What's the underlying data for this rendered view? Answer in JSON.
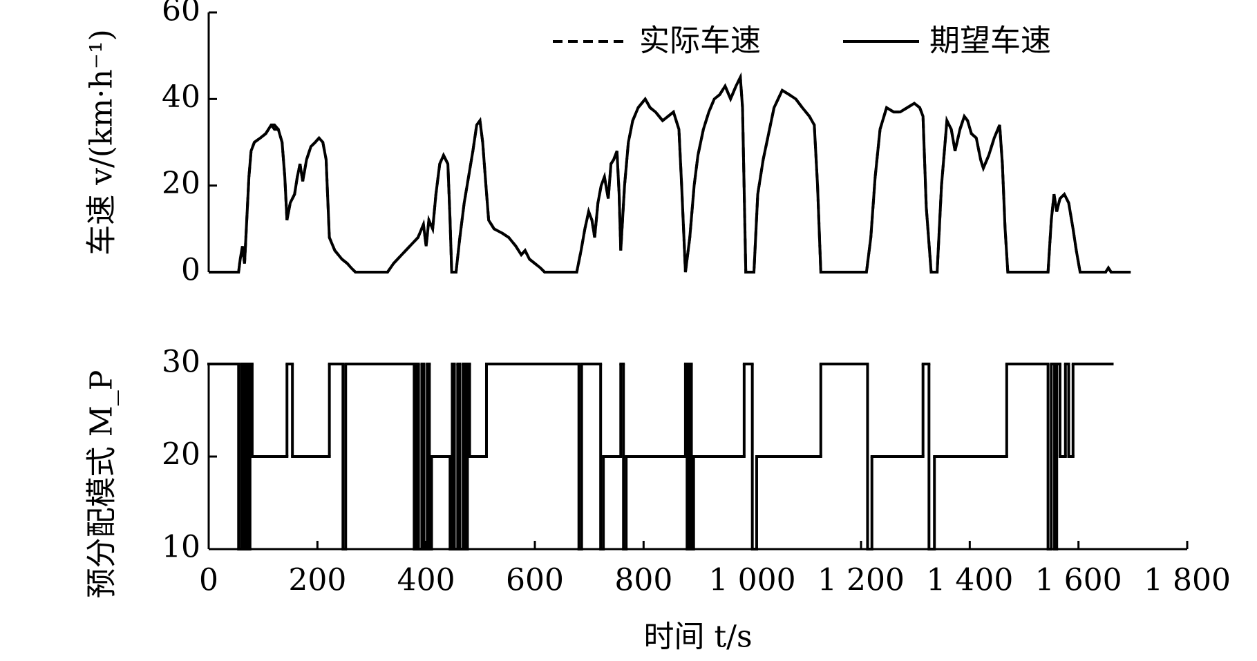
{
  "chart_data": [
    {
      "type": "line",
      "ylabel": "车速 v/(km·h⁻¹)",
      "xlim": [
        0,
        1800
      ],
      "ylim": [
        0,
        60
      ],
      "yticks": [
        0,
        20,
        40,
        60
      ],
      "legend": "upper right",
      "x": [
        0,
        55,
        58,
        62,
        66,
        70,
        74,
        78,
        84,
        95,
        105,
        115,
        121,
        128,
        135,
        140,
        144,
        150,
        158,
        163,
        168,
        173,
        180,
        188,
        196,
        203,
        210,
        216,
        222,
        232,
        245,
        255,
        262,
        270,
        329,
        340,
        355,
        370,
        385,
        395,
        400,
        405,
        412,
        418,
        425,
        432,
        440,
        444,
        447,
        455,
        462,
        470,
        478,
        486,
        493,
        499,
        504,
        510,
        515,
        525,
        540,
        552,
        565,
        575,
        582,
        590,
        600,
        610,
        618,
        677,
        685,
        692,
        699,
        705,
        710,
        716,
        722,
        728,
        735,
        740,
        745,
        751,
        755,
        758,
        765,
        772,
        780,
        790,
        803,
        812,
        822,
        835,
        845,
        855,
        865,
        870,
        877,
        885,
        893,
        900,
        910,
        920,
        930,
        940,
        950,
        960,
        970,
        978,
        982,
        988,
        1003,
        1010,
        1020,
        1030,
        1040,
        1055,
        1068,
        1080,
        1092,
        1105,
        1114,
        1120,
        1126,
        1210,
        1218,
        1226,
        1235,
        1247,
        1260,
        1272,
        1285,
        1298,
        1308,
        1314,
        1320,
        1329,
        1340,
        1348,
        1358,
        1366,
        1373,
        1382,
        1390,
        1396,
        1403,
        1412,
        1420,
        1425,
        1435,
        1445,
        1455,
        1460,
        1465,
        1470,
        1544,
        1550,
        1555,
        1560,
        1566,
        1574,
        1582,
        1590,
        1596,
        1603,
        1650,
        1655,
        1660,
        1696
      ],
      "series": [
        {
          "name": "实际车速",
          "color": "#000000",
          "dash": true,
          "values": [
            0,
            0,
            3,
            5,
            2,
            12,
            22,
            28,
            30,
            31,
            32,
            34,
            33,
            33,
            30,
            22,
            12,
            16,
            18,
            22,
            25,
            21,
            26,
            29,
            30,
            31,
            30,
            26,
            8,
            5,
            3,
            2,
            1,
            0,
            0,
            2,
            4,
            6,
            8,
            11,
            6,
            12,
            10,
            18,
            25,
            27,
            25,
            12,
            0,
            0,
            8,
            16,
            22,
            28,
            34,
            35,
            30,
            20,
            12,
            10,
            9,
            8,
            6,
            4,
            5,
            3,
            2,
            1,
            0,
            0,
            5,
            10,
            14,
            12,
            8,
            16,
            20,
            22,
            17,
            25,
            26,
            28,
            18,
            5,
            20,
            30,
            35,
            38,
            40,
            38,
            37,
            35,
            36,
            37,
            33,
            20,
            0,
            8,
            20,
            27,
            33,
            37,
            40,
            41,
            43,
            40,
            43,
            45,
            38,
            0,
            0,
            18,
            26,
            32,
            38,
            42,
            41,
            40,
            38,
            36,
            34,
            20,
            0,
            0,
            8,
            22,
            33,
            38,
            37,
            37,
            38,
            39,
            38,
            36,
            15,
            0,
            0,
            20,
            35,
            33,
            28,
            33,
            36,
            35,
            32,
            31,
            26,
            24,
            27,
            31,
            34,
            25,
            10,
            0,
            0,
            12,
            18,
            14,
            17,
            18,
            16,
            10,
            5,
            0,
            0,
            1,
            0,
            0
          ]
        },
        {
          "name": "期望车速",
          "color": "#000000",
          "dash": false,
          "values": [
            0,
            0,
            3,
            6,
            2,
            12,
            22,
            28,
            30,
            31,
            32,
            34,
            34,
            33,
            30,
            22,
            12,
            16,
            18,
            22,
            25,
            21,
            26,
            29,
            30,
            31,
            30,
            26,
            8,
            5,
            3,
            2,
            1,
            0,
            0,
            2,
            4,
            6,
            8,
            11,
            6,
            12,
            10,
            18,
            25,
            27,
            25,
            12,
            0,
            0,
            8,
            16,
            22,
            28,
            34,
            35,
            30,
            20,
            12,
            10,
            9,
            8,
            6,
            4,
            5,
            3,
            2,
            1,
            0,
            0,
            5,
            10,
            14,
            12,
            8,
            16,
            20,
            22,
            17,
            25,
            26,
            28,
            18,
            5,
            20,
            30,
            35,
            38,
            40,
            38,
            37,
            35,
            36,
            37,
            33,
            20,
            0,
            8,
            20,
            27,
            33,
            37,
            40,
            41,
            43,
            40,
            43,
            45,
            38,
            0,
            0,
            18,
            26,
            32,
            38,
            42,
            41,
            40,
            38,
            36,
            34,
            20,
            0,
            0,
            8,
            22,
            33,
            38,
            37,
            37,
            38,
            39,
            38,
            36,
            15,
            0,
            0,
            20,
            35,
            33,
            28,
            33,
            36,
            35,
            32,
            31,
            26,
            24,
            27,
            31,
            34,
            25,
            10,
            0,
            0,
            12,
            18,
            14,
            17,
            18,
            16,
            10,
            5,
            0,
            0,
            1,
            0,
            0
          ]
        }
      ]
    },
    {
      "type": "step",
      "ylabel": "预分配模式 M_P",
      "xlabel": "时间 t/s",
      "xlim": [
        0,
        1800
      ],
      "xticks": [
        0,
        200,
        400,
        600,
        800,
        {
          "value": 1000,
          "label": "1 000"
        },
        {
          "value": 1200,
          "label": "1 200"
        },
        {
          "value": 1400,
          "label": "1 400"
        },
        {
          "value": 1600,
          "label": "1 600"
        },
        {
          "value": 1800,
          "label": "1 800"
        }
      ],
      "ylim": [
        10,
        30
      ],
      "yticks": [
        10,
        20,
        30
      ],
      "color": "#000000",
      "x": [
        0,
        55,
        60,
        63,
        68,
        72,
        76,
        80,
        144,
        154,
        222,
        247,
        252,
        378,
        382,
        386,
        392,
        396,
        402,
        406,
        410,
        444,
        448,
        452,
        458,
        462,
        468,
        472,
        476,
        480,
        511,
        681,
        686,
        721,
        726,
        758,
        763,
        768,
        877,
        880,
        884,
        888,
        892,
        985,
        1000,
        1008,
        1126,
        1212,
        1220,
        1314,
        1325,
        1335,
        1468,
        1544,
        1550,
        1556,
        1560,
        1566,
        1576,
        1582,
        1590,
        1662
      ],
      "values": [
        30,
        10,
        30,
        10,
        30,
        10,
        30,
        20,
        30,
        20,
        30,
        10,
        30,
        10,
        30,
        10,
        30,
        10,
        30,
        10,
        20,
        10,
        30,
        10,
        30,
        10,
        30,
        10,
        30,
        20,
        30,
        10,
        30,
        10,
        20,
        30,
        10,
        20,
        30,
        10,
        30,
        10,
        20,
        30,
        10,
        20,
        30,
        10,
        20,
        30,
        10,
        20,
        30,
        10,
        30,
        10,
        30,
        20,
        30,
        20,
        30,
        30
      ]
    }
  ]
}
